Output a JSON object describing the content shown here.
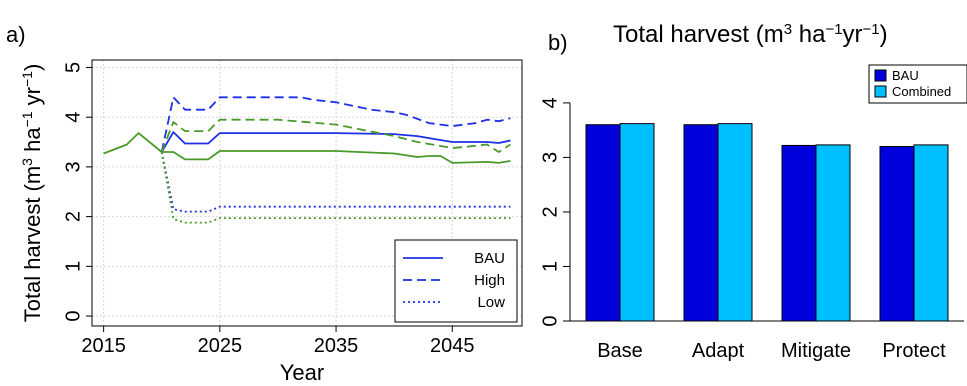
{
  "panels": {
    "a_label": "a)",
    "b_label": "b)"
  },
  "chart_data": [
    {
      "type": "line",
      "panel": "a",
      "title": "",
      "xlabel": "Year",
      "ylabel": "Total harvest (m³ ha⁻¹ yr⁻¹)",
      "xlim": [
        2014,
        2051
      ],
      "ylim": [
        -0.2,
        5.15
      ],
      "xticks": [
        2015,
        2025,
        2035,
        2045
      ],
      "yticks": [
        0,
        1,
        2,
        3,
        4,
        5
      ],
      "grid": true,
      "legend_position": "bottom-right",
      "legend": [
        {
          "label": "BAU",
          "style": "solid"
        },
        {
          "label": "High",
          "style": "dashed"
        },
        {
          "label": "Low",
          "style": "dotted"
        }
      ],
      "colors": {
        "blue": "#1f2fe6",
        "green": "#4a9a2a"
      },
      "series": [
        {
          "color": "green",
          "style": "solid",
          "x": [
            2015,
            2017,
            2018,
            2020
          ],
          "y": [
            3.27,
            3.45,
            3.68,
            3.3
          ]
        },
        {
          "color": "blue",
          "style": "solid",
          "x": [
            2020,
            2021,
            2022,
            2024,
            2025,
            2035,
            2040,
            2042,
            2043,
            2045,
            2048,
            2049,
            2050
          ],
          "y": [
            3.3,
            3.7,
            3.47,
            3.47,
            3.68,
            3.68,
            3.66,
            3.62,
            3.58,
            3.5,
            3.5,
            3.48,
            3.53
          ]
        },
        {
          "color": "blue",
          "style": "dashed",
          "x": [
            2020,
            2021,
            2022,
            2024,
            2025,
            2032,
            2033,
            2035,
            2036,
            2038,
            2040,
            2041,
            2043,
            2045,
            2046,
            2047,
            2048,
            2049,
            2050
          ],
          "y": [
            3.3,
            4.4,
            4.15,
            4.15,
            4.4,
            4.4,
            4.35,
            4.3,
            4.25,
            4.15,
            4.1,
            4.05,
            3.88,
            3.82,
            3.85,
            3.88,
            3.95,
            3.92,
            3.98
          ]
        },
        {
          "color": "blue",
          "style": "dotted",
          "x": [
            2020,
            2021,
            2022,
            2024,
            2025,
            2050
          ],
          "y": [
            3.3,
            2.15,
            2.1,
            2.1,
            2.2,
            2.2
          ]
        },
        {
          "color": "green",
          "style": "solid",
          "x": [
            2020,
            2021,
            2022,
            2024,
            2025,
            2035,
            2040,
            2042,
            2043,
            2044,
            2045,
            2048,
            2049,
            2050
          ],
          "y": [
            3.3,
            3.3,
            3.15,
            3.15,
            3.32,
            3.32,
            3.27,
            3.2,
            3.22,
            3.22,
            3.08,
            3.1,
            3.08,
            3.12
          ]
        },
        {
          "color": "green",
          "style": "dashed",
          "x": [
            2020,
            2021,
            2022,
            2024,
            2025,
            2030,
            2035,
            2040,
            2042,
            2044,
            2045,
            2046,
            2048,
            2049,
            2050
          ],
          "y": [
            3.3,
            3.9,
            3.72,
            3.72,
            3.95,
            3.95,
            3.85,
            3.62,
            3.5,
            3.42,
            3.38,
            3.4,
            3.45,
            3.3,
            3.45
          ]
        },
        {
          "color": "green",
          "style": "dotted",
          "x": [
            2020,
            2021,
            2022,
            2024,
            2025,
            2050
          ],
          "y": [
            3.3,
            1.95,
            1.88,
            1.88,
            1.97,
            1.97
          ]
        }
      ]
    },
    {
      "type": "bar",
      "panel": "b",
      "title_main": "Total harvest (m",
      "title_sup1": "3",
      "title_mid1": " ha",
      "title_sup2": "−1",
      "title_mid2": "yr",
      "title_sup3": "−1",
      "title_end": ")",
      "categories": [
        "Base",
        "Adapt",
        "Mitigate",
        "Protect"
      ],
      "ylim": [
        0,
        4.2
      ],
      "yticks": [
        0,
        1,
        2,
        3,
        4
      ],
      "legend_position": "top-right",
      "series": [
        {
          "name": "BAU",
          "color": "#0000dd",
          "values": [
            3.6,
            3.6,
            3.22,
            3.2
          ]
        },
        {
          "name": "Combined",
          "color": "#00bfff",
          "values": [
            3.62,
            3.62,
            3.23,
            3.23
          ]
        }
      ]
    }
  ]
}
